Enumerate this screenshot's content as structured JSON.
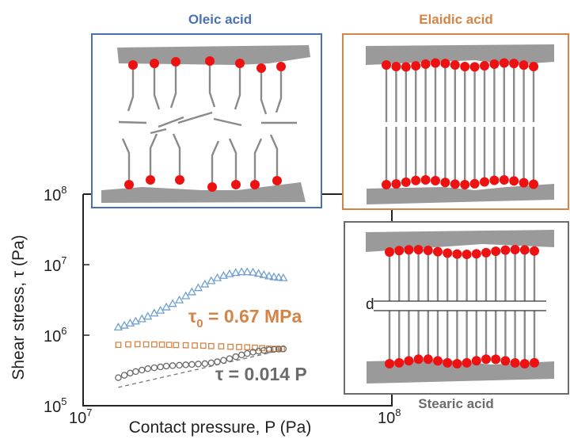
{
  "colors": {
    "oleic": "#4a72b0",
    "oleic_marker": "#6fa0d0",
    "elaidic": "#d58446",
    "stearic": "#6b6b6b",
    "head": "#ee1111",
    "surface": "#9a9a9a",
    "tail": "#8a8a8a",
    "axis": "#222222"
  },
  "panels": {
    "oleic_title": "Oleic acid",
    "elaidic_title": "Elaidic acid",
    "stearic_title": "Stearic acid",
    "d_label": "d"
  },
  "chart_data": {
    "type": "scatter",
    "xlabel": "Contact pressure, P (Pa)",
    "ylabel": "Shear stress, τ (Pa)",
    "xscale": "log",
    "yscale": "log",
    "xlim": [
      10000000.0,
      100000000.0
    ],
    "ylim": [
      100000.0,
      100000000.0
    ],
    "x_ticks": [
      {
        "value": 10000000.0,
        "base": "10",
        "exp": "7"
      },
      {
        "value": 100000000.0,
        "base": "10",
        "exp": "8"
      }
    ],
    "y_ticks": [
      {
        "value": 100000.0,
        "base": "10",
        "exp": "5"
      },
      {
        "value": 1000000.0,
        "base": "10",
        "exp": "6"
      },
      {
        "value": 10000000.0,
        "base": "10",
        "exp": "7"
      },
      {
        "value": 100000000.0,
        "base": "10",
        "exp": "8"
      }
    ],
    "annotations": {
      "tau0": {
        "symbol": "τ",
        "sub": "0",
        "text": " = 0.67 MPa"
      },
      "fit": {
        "text": "τ = 0.014 P"
      }
    },
    "series": [
      {
        "marker": "triangle",
        "color": "#6fa0d0",
        "points": [
          [
            13000000.0,
            1300000.0
          ],
          [
            13600000.0,
            1380000.0
          ],
          [
            14200000.0,
            1480000.0
          ],
          [
            14800000.0,
            1580000.0
          ],
          [
            15500000.0,
            1700000.0
          ],
          [
            16200000.0,
            1850000.0
          ],
          [
            17000000.0,
            2050000.0
          ],
          [
            17800000.0,
            2250000.0
          ],
          [
            18600000.0,
            2500000.0
          ],
          [
            19500000.0,
            2800000.0
          ],
          [
            20500000.0,
            3150000.0
          ],
          [
            21500000.0,
            3600000.0
          ],
          [
            22500000.0,
            4100000.0
          ],
          [
            23600000.0,
            4700000.0
          ],
          [
            24800000.0,
            5300000.0
          ],
          [
            26000000.0,
            5900000.0
          ],
          [
            27200000.0,
            6500000.0
          ],
          [
            28500000.0,
            7000000.0
          ],
          [
            29800000.0,
            7400000.0
          ],
          [
            31200000.0,
            7700000.0
          ],
          [
            32600000.0,
            7900000.0
          ],
          [
            34000000.0,
            7900000.0
          ],
          [
            35500000.0,
            7800000.0
          ],
          [
            37000000.0,
            7500000.0
          ],
          [
            38500000.0,
            7200000.0
          ],
          [
            40000000.0,
            6900000.0
          ],
          [
            41500000.0,
            6700000.0
          ],
          [
            43000000.0,
            6600000.0
          ],
          [
            44500000.0,
            6500000.0
          ]
        ]
      },
      {
        "marker": "square",
        "color": "#d58446",
        "points": [
          [
            13000000.0,
            730000.0
          ],
          [
            14000000.0,
            740000.0
          ],
          [
            15000000.0,
            745000.0
          ],
          [
            16000000.0,
            740000.0
          ],
          [
            17000000.0,
            740000.0
          ],
          [
            18000000.0,
            735000.0
          ],
          [
            19000000.0,
            730000.0
          ],
          [
            20000000.0,
            725000.0
          ],
          [
            21500000.0,
            720000.0
          ],
          [
            23000000.0,
            715000.0
          ],
          [
            24500000.0,
            710000.0
          ],
          [
            26000000.0,
            700000.0
          ],
          [
            28000000.0,
            695000.0
          ],
          [
            30000000.0,
            685000.0
          ],
          [
            32000000.0,
            680000.0
          ],
          [
            34000000.0,
            675000.0
          ],
          [
            36000000.0,
            665000.0
          ],
          [
            38000000.0,
            655000.0
          ],
          [
            40000000.0,
            645000.0
          ],
          [
            42000000.0,
            640000.0
          ],
          [
            44000000.0,
            635000.0
          ]
        ]
      },
      {
        "marker": "circle",
        "color": "#6b6b6b",
        "points": [
          [
            13000000.0,
            250000.0
          ],
          [
            13600000.0,
            270000.0
          ],
          [
            14200000.0,
            290000.0
          ],
          [
            14800000.0,
            305000.0
          ],
          [
            15500000.0,
            320000.0
          ],
          [
            16200000.0,
            335000.0
          ],
          [
            17000000.0,
            345000.0
          ],
          [
            17800000.0,
            355000.0
          ],
          [
            18600000.0,
            365000.0
          ],
          [
            19500000.0,
            370000.0
          ],
          [
            20500000.0,
            375000.0
          ],
          [
            21500000.0,
            380000.0
          ],
          [
            22500000.0,
            385000.0
          ],
          [
            23600000.0,
            390000.0
          ],
          [
            24800000.0,
            395000.0
          ],
          [
            26000000.0,
            405000.0
          ],
          [
            27200000.0,
            420000.0
          ],
          [
            28500000.0,
            440000.0
          ],
          [
            29800000.0,
            465000.0
          ],
          [
            31200000.0,
            495000.0
          ],
          [
            32600000.0,
            525000.0
          ],
          [
            34000000.0,
            550000.0
          ],
          [
            35500000.0,
            575000.0
          ],
          [
            37000000.0,
            595000.0
          ],
          [
            38500000.0,
            610000.0
          ],
          [
            40000000.0,
            620000.0
          ],
          [
            41500000.0,
            630000.0
          ],
          [
            43000000.0,
            635000.0
          ],
          [
            44500000.0,
            640000.0
          ]
        ]
      }
    ],
    "fit_line": {
      "coef": 0.014,
      "x_range": [
        13000000.0,
        45000000.0
      ],
      "style": "dashed"
    }
  }
}
